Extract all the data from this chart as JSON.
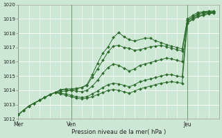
{
  "xlabel": "Pression niveau de la mer( hPa )",
  "bg_color": "#cce8d4",
  "grid_color": "#b0d4b8",
  "line_color": "#2d6b2d",
  "marker_size": 2.0,
  "xlim": [
    0,
    114
  ],
  "ylim": [
    1012.0,
    1020.0
  ],
  "yticks": [
    1012,
    1013,
    1014,
    1015,
    1016,
    1017,
    1018,
    1019,
    1020
  ],
  "xtick_major": [
    0,
    30,
    96
  ],
  "xtick_labels": [
    "Mer",
    "Ven",
    "Jeu"
  ],
  "xtick_minor_step": 6,
  "day_vlines": [
    0,
    30,
    96
  ],
  "series": [
    [
      0,
      1012.3,
      3,
      1012.6,
      6,
      1012.9,
      9,
      1013.1,
      12,
      1013.3,
      15,
      1013.5,
      18,
      1013.7,
      21,
      1013.85,
      24,
      1013.9,
      27,
      1013.95,
      30,
      1014.0,
      33,
      1014.1,
      36,
      1014.2,
      39,
      1014.35,
      42,
      1014.9,
      45,
      1015.5,
      48,
      1016.1,
      51,
      1016.7,
      54,
      1017.1,
      57,
      1017.15,
      60,
      1017.0,
      63,
      1016.95,
      66,
      1016.8,
      69,
      1016.85,
      72,
      1016.95,
      75,
      1017.05,
      78,
      1017.1,
      81,
      1017.15,
      84,
      1017.05,
      87,
      1016.95,
      90,
      1016.85,
      93,
      1016.75,
      96,
      1018.9,
      99,
      1019.15,
      102,
      1019.35,
      105,
      1019.45,
      108,
      1019.5,
      111,
      1019.5
    ],
    [
      0,
      1012.3,
      3,
      1012.6,
      6,
      1012.9,
      9,
      1013.1,
      12,
      1013.3,
      15,
      1013.5,
      18,
      1013.7,
      21,
      1013.85,
      24,
      1014.0,
      27,
      1014.05,
      30,
      1014.0,
      33,
      1013.95,
      36,
      1013.9,
      39,
      1014.0,
      42,
      1014.3,
      45,
      1014.7,
      48,
      1015.2,
      51,
      1015.6,
      54,
      1015.85,
      57,
      1015.75,
      60,
      1015.55,
      63,
      1015.35,
      66,
      1015.5,
      69,
      1015.75,
      72,
      1015.85,
      75,
      1015.95,
      78,
      1016.05,
      81,
      1016.15,
      84,
      1016.25,
      87,
      1016.2,
      90,
      1016.1,
      93,
      1016.0,
      96,
      1018.85,
      99,
      1019.1,
      102,
      1019.3,
      105,
      1019.4,
      108,
      1019.45,
      111,
      1019.5
    ],
    [
      0,
      1012.3,
      3,
      1012.6,
      6,
      1012.9,
      9,
      1013.1,
      12,
      1013.3,
      15,
      1013.5,
      18,
      1013.7,
      21,
      1013.85,
      24,
      1013.8,
      27,
      1013.75,
      30,
      1013.65,
      33,
      1013.55,
      36,
      1013.5,
      39,
      1013.55,
      42,
      1013.75,
      45,
      1013.95,
      48,
      1014.2,
      51,
      1014.4,
      54,
      1014.5,
      57,
      1014.45,
      60,
      1014.35,
      63,
      1014.25,
      66,
      1014.4,
      69,
      1014.6,
      72,
      1014.7,
      75,
      1014.8,
      78,
      1014.9,
      81,
      1015.0,
      84,
      1015.1,
      87,
      1015.1,
      90,
      1015.0,
      93,
      1014.95,
      96,
      1018.75,
      99,
      1019.0,
      102,
      1019.2,
      105,
      1019.3,
      108,
      1019.4,
      111,
      1019.45
    ],
    [
      0,
      1012.3,
      3,
      1012.6,
      6,
      1012.9,
      9,
      1013.1,
      12,
      1013.3,
      15,
      1013.5,
      18,
      1013.7,
      21,
      1013.85,
      24,
      1013.75,
      27,
      1013.65,
      30,
      1013.55,
      33,
      1013.45,
      36,
      1013.4,
      39,
      1013.45,
      42,
      1013.55,
      45,
      1013.7,
      48,
      1013.85,
      51,
      1014.0,
      54,
      1014.05,
      57,
      1014.0,
      60,
      1013.9,
      63,
      1013.8,
      66,
      1013.95,
      69,
      1014.1,
      72,
      1014.2,
      75,
      1014.3,
      78,
      1014.4,
      81,
      1014.5,
      84,
      1014.55,
      87,
      1014.6,
      90,
      1014.55,
      93,
      1014.5,
      96,
      1018.7,
      99,
      1018.95,
      102,
      1019.15,
      105,
      1019.25,
      108,
      1019.35,
      111,
      1019.4
    ],
    [
      0,
      1012.3,
      3,
      1012.6,
      6,
      1012.9,
      9,
      1013.1,
      12,
      1013.3,
      15,
      1013.5,
      18,
      1013.7,
      21,
      1013.85,
      24,
      1014.05,
      27,
      1014.1,
      30,
      1014.1,
      33,
      1014.15,
      36,
      1014.2,
      39,
      1014.4,
      42,
      1015.1,
      45,
      1015.9,
      48,
      1016.6,
      51,
      1017.05,
      54,
      1017.7,
      57,
      1018.05,
      60,
      1017.75,
      63,
      1017.55,
      66,
      1017.45,
      72,
      1017.65,
      75,
      1017.65,
      78,
      1017.45,
      81,
      1017.35,
      84,
      1017.2,
      87,
      1017.1,
      90,
      1017.0,
      93,
      1016.9,
      96,
      1019.0,
      99,
      1019.25,
      102,
      1019.45,
      105,
      1019.5,
      108,
      1019.55,
      111,
      1019.55
    ]
  ]
}
